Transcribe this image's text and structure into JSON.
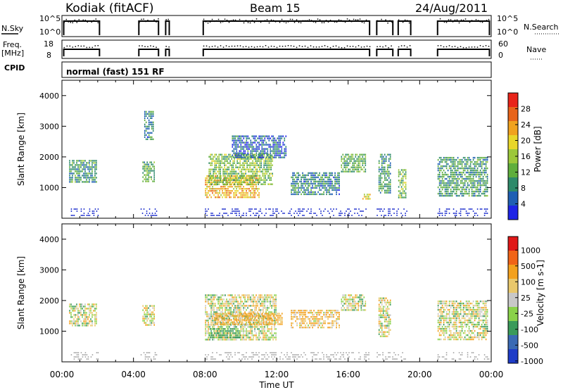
{
  "header": {
    "station": "Kodiak (fitACF)",
    "beam": "Beam 15",
    "date": "24/Aug/2011"
  },
  "status_panels": {
    "nsky_label": "N.Sky",
    "nsky_ticks": [
      "10^5",
      "10^0"
    ],
    "nsearch_label": "N.Search",
    "nsearch_ticks": [
      "10^5",
      "10^0"
    ],
    "freq_label_line1": "Freq.",
    "freq_label_line2": "[MHz]",
    "freq_ticks": [
      "18",
      "8"
    ],
    "nave_label": "Nave",
    "nave_ticks": [
      "60",
      "0"
    ],
    "cpid_label": "CPID",
    "cpid_text": "normal (fast) 151 RF"
  },
  "colors": {
    "power_scale": [
      "#1e24e6",
      "#1f5fb3",
      "#2e8a6a",
      "#5fae3c",
      "#9cc83a",
      "#e8d62a",
      "#f0a21e",
      "#e8641a",
      "#e8241a"
    ],
    "velocity_scale": [
      "#e01818",
      "#f06418",
      "#f3a11e",
      "#e9c86c",
      "#c8c8c8",
      "#8ad24a",
      "#3a9a5a",
      "#3a6ab4",
      "#1e3cc8"
    ]
  },
  "chart_data": [
    {
      "type": "heatmap",
      "title": "",
      "xlabel": "Time UT",
      "ylabel": "Slant Range [km]",
      "xlim": [
        "00:00",
        "24:00"
      ],
      "ylim": [
        0,
        4500
      ],
      "x_ticks": [
        "00:00",
        "04:00",
        "08:00",
        "12:00",
        "16:00",
        "20:00",
        "00:00"
      ],
      "y_ticks": [
        1000,
        2000,
        3000,
        4000
      ],
      "colorbar_label": "Power [dB]",
      "colorbar_ticks": [
        "4",
        "8",
        "12",
        "16",
        "20",
        "24",
        "28"
      ],
      "colorbar_range": [
        0,
        32
      ],
      "data_blocks": [
        {
          "t0": 0.4,
          "t1": 1.9,
          "r0": 1200,
          "r1": 1900,
          "value": 10
        },
        {
          "t0": 4.5,
          "t1": 5.2,
          "r0": 1200,
          "r1": 1850,
          "value": 12
        },
        {
          "t0": 4.6,
          "t1": 5.1,
          "r0": 2600,
          "r1": 3500,
          "value": 8
        },
        {
          "t0": 8.0,
          "t1": 11.0,
          "r0": 700,
          "r1": 1400,
          "value": 22
        },
        {
          "t0": 8.2,
          "t1": 11.8,
          "r0": 1100,
          "r1": 2100,
          "value": 14
        },
        {
          "t0": 9.5,
          "t1": 12.5,
          "r0": 2000,
          "r1": 2700,
          "value": 6
        },
        {
          "t0": 12.8,
          "t1": 15.5,
          "r0": 800,
          "r1": 1500,
          "value": 8
        },
        {
          "t0": 15.6,
          "t1": 17.0,
          "r0": 1500,
          "r1": 2100,
          "value": 12
        },
        {
          "t0": 16.8,
          "t1": 17.2,
          "r0": 600,
          "r1": 800,
          "value": 20
        },
        {
          "t0": 17.7,
          "t1": 18.4,
          "r0": 800,
          "r1": 2100,
          "value": 10
        },
        {
          "t0": 18.8,
          "t1": 19.2,
          "r0": 700,
          "r1": 1600,
          "value": 14
        },
        {
          "t0": 21.0,
          "t1": 23.8,
          "r0": 700,
          "r1": 2000,
          "value": 10
        }
      ]
    },
    {
      "type": "heatmap",
      "title": "",
      "xlabel": "Time UT",
      "ylabel": "Slant Range [km]",
      "xlim": [
        "00:00",
        "24:00"
      ],
      "ylim": [
        0,
        4500
      ],
      "x_ticks": [
        "00:00",
        "04:00",
        "08:00",
        "12:00",
        "16:00",
        "20:00",
        "00:00"
      ],
      "y_ticks": [
        1000,
        2000,
        3000,
        4000
      ],
      "colorbar_label": "Velocity [m s-1]",
      "colorbar_ticks": [
        "1000",
        "500",
        "100",
        "25",
        "-25",
        "-100",
        "-500",
        "-1000"
      ],
      "data_blocks": [
        {
          "t0": 0.4,
          "t1": 1.9,
          "r0": 1200,
          "r1": 1900,
          "value": 0
        },
        {
          "t0": 4.5,
          "t1": 5.2,
          "r0": 1200,
          "r1": 1850,
          "value": 0
        },
        {
          "t0": 8.0,
          "t1": 12.0,
          "r0": 700,
          "r1": 2200,
          "value": 0
        },
        {
          "t0": 8.5,
          "t1": 12.3,
          "r0": 1200,
          "r1": 1600,
          "value": -150
        },
        {
          "t0": 8.2,
          "t1": 10.0,
          "r0": 800,
          "r1": 1100,
          "value": 200
        },
        {
          "t0": 12.8,
          "t1": 15.5,
          "r0": 1100,
          "r1": 1700,
          "value": -100
        },
        {
          "t0": 15.6,
          "t1": 17.0,
          "r0": 1700,
          "r1": 2200,
          "value": 0
        },
        {
          "t0": 17.7,
          "t1": 18.4,
          "r0": 800,
          "r1": 2100,
          "value": 0
        },
        {
          "t0": 21.0,
          "t1": 23.8,
          "r0": 700,
          "r1": 2000,
          "value": 0
        }
      ]
    }
  ]
}
